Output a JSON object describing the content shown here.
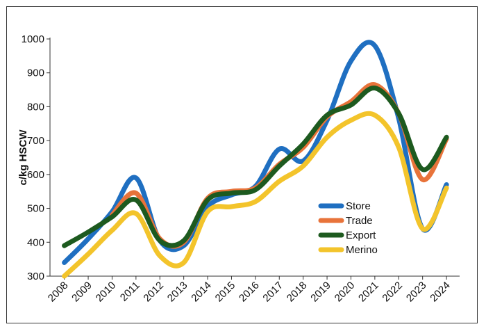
{
  "chart_data": {
    "type": "line",
    "title": "",
    "xlabel": "",
    "ylabel": "c/kg HSCW",
    "ylim": [
      300,
      1000
    ],
    "yticks": [
      300,
      400,
      500,
      600,
      700,
      800,
      900,
      1000
    ],
    "categories": [
      "2008",
      "2009",
      "2010",
      "2011",
      "2012",
      "2013",
      "2014",
      "2015",
      "2016",
      "2017",
      "2018",
      "2019",
      "2020",
      "2021",
      "2022",
      "2023",
      "2024"
    ],
    "grid": false,
    "legend_position": "bottom-right",
    "series": [
      {
        "name": "Store",
        "color": "#1f6fc1",
        "points": [
          [
            2008,
            340
          ],
          [
            2009,
            410
          ],
          [
            2010,
            490
          ],
          [
            2011,
            590
          ],
          [
            2012,
            405
          ],
          [
            2013,
            390
          ],
          [
            2014,
            505
          ],
          [
            2015,
            540
          ],
          [
            2016,
            565
          ],
          [
            2017,
            675
          ],
          [
            2018,
            640
          ],
          [
            2019,
            760
          ],
          [
            2020,
            935
          ],
          [
            2021,
            980
          ],
          [
            2022,
            765
          ],
          [
            2023,
            440
          ],
          [
            2024,
            570
          ]
        ]
      },
      {
        "name": "Trade",
        "color": "#e8733a",
        "points": [
          [
            2010,
            480
          ],
          [
            2011,
            545
          ],
          [
            2012,
            410
          ],
          [
            2013,
            400
          ],
          [
            2014,
            530
          ],
          [
            2015,
            550
          ],
          [
            2016,
            560
          ],
          [
            2017,
            630
          ],
          [
            2018,
            680
          ],
          [
            2019,
            770
          ],
          [
            2020,
            815
          ],
          [
            2021,
            865
          ],
          [
            2022,
            780
          ],
          [
            2023,
            585
          ],
          [
            2024,
            705
          ]
        ]
      },
      {
        "name": "Export",
        "color": "#1d5a1f",
        "points": [
          [
            2008,
            390
          ],
          [
            2009,
            430
          ],
          [
            2010,
            475
          ],
          [
            2011,
            525
          ],
          [
            2012,
            405
          ],
          [
            2013,
            405
          ],
          [
            2014,
            525
          ],
          [
            2015,
            545
          ],
          [
            2016,
            555
          ],
          [
            2017,
            625
          ],
          [
            2018,
            690
          ],
          [
            2019,
            775
          ],
          [
            2020,
            805
          ],
          [
            2021,
            855
          ],
          [
            2022,
            780
          ],
          [
            2023,
            615
          ],
          [
            2024,
            710
          ]
        ]
      },
      {
        "name": "Merino",
        "color": "#f3c42b",
        "points": [
          [
            2008,
            300
          ],
          [
            2009,
            365
          ],
          [
            2010,
            435
          ],
          [
            2011,
            485
          ],
          [
            2012,
            360
          ],
          [
            2013,
            340
          ],
          [
            2014,
            490
          ],
          [
            2015,
            505
          ],
          [
            2016,
            520
          ],
          [
            2017,
            580
          ],
          [
            2018,
            625
          ],
          [
            2019,
            710
          ],
          [
            2020,
            760
          ],
          [
            2021,
            775
          ],
          [
            2022,
            680
          ],
          [
            2023,
            440
          ],
          [
            2024,
            560
          ]
        ]
      }
    ]
  }
}
